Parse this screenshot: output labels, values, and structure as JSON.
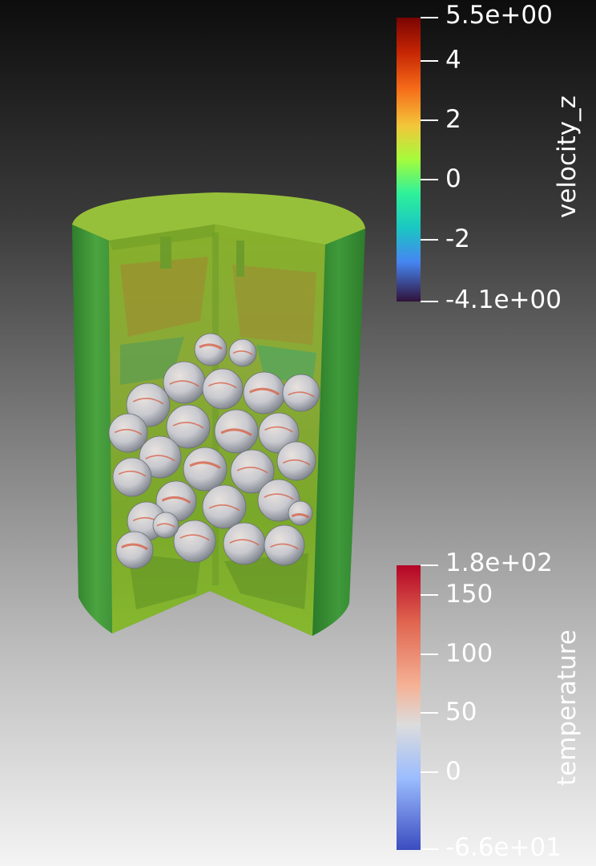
{
  "colorbars": {
    "velocity": {
      "title": "velocity_z",
      "labels": [
        "5.5e+00",
        "4",
        "2",
        "0",
        "-2",
        "-4.1e+00"
      ]
    },
    "temperature": {
      "title": "temperature",
      "labels": [
        "1.8e+02",
        "150",
        "100",
        "50",
        "0",
        "-6.6e+01"
      ]
    }
  },
  "colors": {
    "cylinder_shell": "#3f9a3a",
    "cylinder_top": "#97c03a",
    "interior": "#7fae2a",
    "sphere_base": "#c9ccd3",
    "sphere_hot": "#d65b40"
  }
}
